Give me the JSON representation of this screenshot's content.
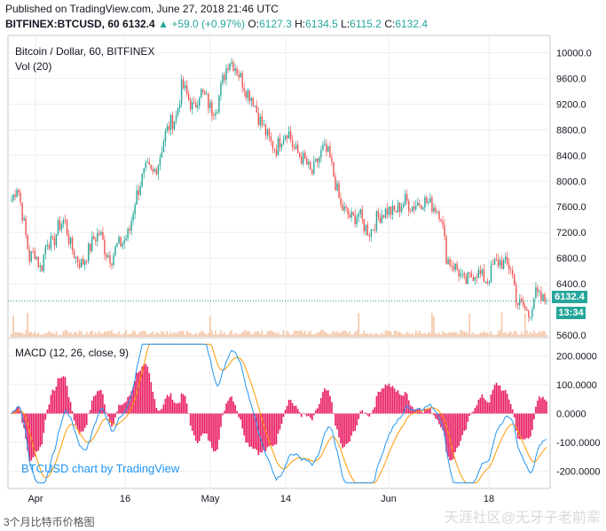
{
  "header": {
    "published": "Published on TradingView.com, June 27, 2018 21:46 UTC",
    "symbol": "BITFINEX:BTCUSD, 60",
    "last": "6132.4",
    "change": "+59.0 (+0.97%)",
    "open_label": "O:",
    "open": "6127.3",
    "high_label": "H:",
    "high": "6134.5",
    "low_label": "L:",
    "low": "6115.2",
    "close_label": "C:",
    "close": "6132.4"
  },
  "price_pane": {
    "title": "Bitcoin / Dollar, 60, BITFINEX",
    "volume_label": "Vol (20)",
    "last_price_tag": "6132.4",
    "countdown": "13:34"
  },
  "macd_pane": {
    "label": "MACD (12, 26, close, 9)"
  },
  "watermark": "BTCUSD chart by TradingView",
  "caption": "3个月比特币价格图",
  "source_mark": "天涯社区@无牙子老前辈",
  "colors": {
    "up": "#26a69a",
    "down": "#ef5350",
    "macd": "#2196f3",
    "signal": "#ff9800",
    "hist": "#e91e63",
    "grid": "#eeeeee",
    "vol": "#f4c6a8"
  },
  "chart_data": [
    {
      "type": "candlestick",
      "title": "Bitcoin / Dollar, 60, BITFINEX",
      "x_tick_labels": [
        "Apr",
        "16",
        "May",
        "14",
        "Jun",
        "18"
      ],
      "y_ticks": [
        "10000.0",
        "9600.0",
        "9200.0",
        "8800.0",
        "8400.0",
        "8000.0",
        "7600.0",
        "7200.0",
        "6800.0",
        "6400.0",
        "5600.0"
      ],
      "ylim": [
        5600,
        10200
      ],
      "close_path": [
        [
          "Mar 28",
          7700
        ],
        [
          "Mar 29",
          7950
        ],
        [
          "Mar 30",
          7400
        ],
        [
          "Mar 31",
          6800
        ],
        [
          "Apr 1",
          6900
        ],
        [
          "Apr 2",
          6600
        ],
        [
          "Apr 3",
          7100
        ],
        [
          "Apr 4",
          7000
        ],
        [
          "Apr 5",
          7300
        ],
        [
          "Apr 6",
          7400
        ],
        [
          "Apr 7",
          7000
        ],
        [
          "Apr 8",
          6800
        ],
        [
          "Apr 9",
          6700
        ],
        [
          "Apr 10",
          6900
        ],
        [
          "Apr 11",
          7100
        ],
        [
          "Apr 12",
          7200
        ],
        [
          "Apr 13",
          6900
        ],
        [
          "Apr 14",
          6800
        ],
        [
          "Apr 15",
          7000
        ],
        [
          "Apr 16",
          7050
        ],
        [
          "Apr 17",
          7200
        ],
        [
          "Apr 18",
          7700
        ],
        [
          "Apr 19",
          8000
        ],
        [
          "Apr 20",
          8200
        ],
        [
          "Apr 21",
          8100
        ],
        [
          "Apr 22",
          8300
        ],
        [
          "Apr 23",
          8700
        ],
        [
          "Apr 24",
          8900
        ],
        [
          "Apr 25",
          9000
        ],
        [
          "Apr 26",
          9500
        ],
        [
          "Apr 27",
          9300
        ],
        [
          "Apr 28",
          9100
        ],
        [
          "Apr 29",
          9400
        ],
        [
          "Apr 30",
          9300
        ],
        [
          "May 1",
          9100
        ],
        [
          "May 2",
          9200
        ],
        [
          "May 3",
          9600
        ],
        [
          "May 4",
          9900
        ],
        [
          "May 5",
          9800
        ],
        [
          "May 6",
          9600
        ],
        [
          "May 7",
          9400
        ],
        [
          "May 8",
          9300
        ],
        [
          "May 9",
          9000
        ],
        [
          "May 10",
          8800
        ],
        [
          "May 11",
          8600
        ],
        [
          "May 12",
          8500
        ],
        [
          "May 13",
          8700
        ],
        [
          "May 14",
          8800
        ],
        [
          "May 15",
          8500
        ],
        [
          "May 16",
          8400
        ],
        [
          "May 17",
          8300
        ],
        [
          "May 18",
          8100
        ],
        [
          "May 19",
          8300
        ],
        [
          "May 20",
          8500
        ],
        [
          "May 21",
          8400
        ],
        [
          "May 22",
          8000
        ],
        [
          "May 23",
          7600
        ],
        [
          "May 24",
          7500
        ],
        [
          "May 25",
          7400
        ],
        [
          "May 26",
          7500
        ],
        [
          "May 27",
          7300
        ],
        [
          "May 28",
          7200
        ],
        [
          "May 29",
          7400
        ],
        [
          "May 30",
          7500
        ],
        [
          "May 31",
          7550
        ],
        [
          "Jun 1",
          7500
        ],
        [
          "Jun 2",
          7600
        ],
        [
          "Jun 3",
          7700
        ],
        [
          "Jun 4",
          7600
        ],
        [
          "Jun 5",
          7650
        ],
        [
          "Jun 6",
          7700
        ],
        [
          "Jun 7",
          7650
        ],
        [
          "Jun 8",
          7600
        ],
        [
          "Jun 9",
          7500
        ],
        [
          "Jun 10",
          6800
        ],
        [
          "Jun 11",
          6700
        ],
        [
          "Jun 12",
          6600
        ],
        [
          "Jun 13",
          6400
        ],
        [
          "Jun 14",
          6500
        ],
        [
          "Jun 15",
          6600
        ],
        [
          "Jun 16",
          6500
        ],
        [
          "Jun 17",
          6450
        ],
        [
          "Jun 18",
          6700
        ],
        [
          "Jun 19",
          6750
        ],
        [
          "Jun 20",
          6700
        ],
        [
          "Jun 21",
          6650
        ],
        [
          "Jun 22",
          6100
        ],
        [
          "Jun 23",
          6050
        ],
        [
          "Jun 24",
          5900
        ],
        [
          "Jun 25",
          6250
        ],
        [
          "Jun 26",
          6150
        ],
        [
          "Jun 27",
          6132.4
        ]
      ],
      "last_price": 6132.4
    },
    {
      "type": "line",
      "title": "MACD (12, 26, close, 9)",
      "y_ticks": [
        "200.0000",
        "100.0000",
        "0.0000",
        "-100.0000",
        "-200.0000"
      ],
      "ylim": [
        -250,
        250
      ],
      "series": [
        {
          "name": "MACD",
          "color": "#2196f3"
        },
        {
          "name": "Signal",
          "color": "#ff9800"
        },
        {
          "name": "Histogram",
          "color": "#e91e63"
        }
      ]
    }
  ]
}
